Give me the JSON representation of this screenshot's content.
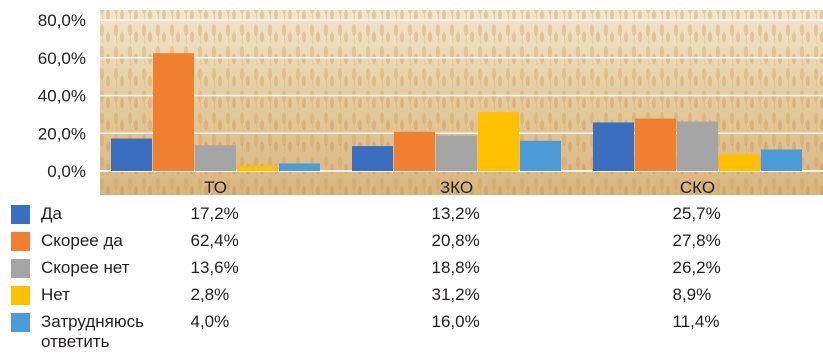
{
  "chart_data": {
    "type": "bar",
    "categories": [
      "ТО",
      "ЗКО",
      "СКО"
    ],
    "ylim": [
      0,
      80
    ],
    "yticks": [
      "0,0%",
      "20,0%",
      "40,0%",
      "60,0%",
      "80,0%"
    ],
    "grid": true,
    "legend": "bottom-table",
    "series": [
      {
        "name": "Да",
        "color": "#3a6fbf",
        "values": [
          17.2,
          13.2,
          25.7
        ],
        "labels": [
          "17,2%",
          "13,2%",
          "25,7%"
        ]
      },
      {
        "name": "Скорее да",
        "color": "#f0802f",
        "values": [
          62.4,
          20.8,
          27.8
        ],
        "labels": [
          "62,4%",
          "20,8%",
          "27,8%"
        ]
      },
      {
        "name": "Скорее нет",
        "color": "#a5a5a5",
        "values": [
          13.6,
          18.8,
          26.2
        ],
        "labels": [
          "13,6%",
          "18,8%",
          "26,2%"
        ]
      },
      {
        "name": "Нет",
        "color": "#ffc000",
        "values": [
          2.8,
          31.2,
          8.9
        ],
        "labels": [
          "2,8%",
          "31,2%",
          "8,9%"
        ]
      },
      {
        "name": "Затрудняюсь ответить",
        "color": "#4c9ad8",
        "values": [
          4.0,
          16.0,
          11.4
        ],
        "labels": [
          "4,0%",
          "16,0%",
          "11,4%"
        ]
      }
    ]
  }
}
